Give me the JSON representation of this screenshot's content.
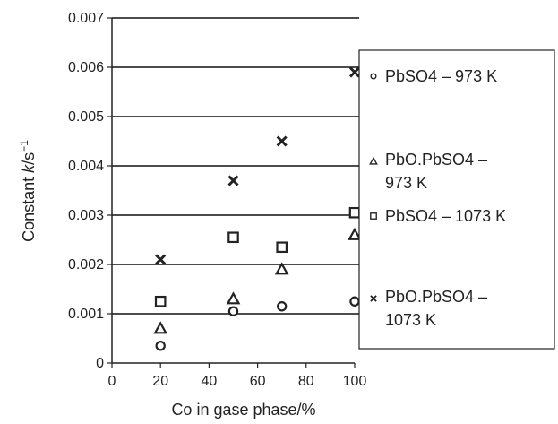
{
  "chart_data": {
    "type": "scatter",
    "xlabel": "Co in gase phase/%",
    "ylabel_main": "Constant ",
    "ylabel_italic": "k",
    "ylabel_unit": "/s",
    "ylabel_sup": "−1",
    "xlim": [
      0,
      100
    ],
    "ylim": [
      0,
      0.007
    ],
    "xticks": [
      "0",
      "20",
      "40",
      "60",
      "80",
      "100"
    ],
    "yticks": [
      "0",
      "0.001",
      "0.002",
      "0.003",
      "0.004",
      "0.005",
      "0.006",
      "0.007"
    ],
    "grid": "horizontal",
    "legend_position": "right",
    "series": [
      {
        "legend_lines": [
          "PbSO4 – 973 K"
        ],
        "marker": "circle",
        "x": [
          20,
          50,
          70,
          100
        ],
        "y": [
          0.00035,
          0.00105,
          0.00115,
          0.00125
        ]
      },
      {
        "legend_lines": [
          "PbO.PbSO4 –",
          "973 K"
        ],
        "marker": "triangle",
        "x": [
          20,
          50,
          70,
          100
        ],
        "y": [
          0.0007,
          0.0013,
          0.0019,
          0.0026
        ]
      },
      {
        "legend_lines": [
          "PbSO4 – 1073 K"
        ],
        "marker": "square",
        "x": [
          20,
          50,
          70,
          100
        ],
        "y": [
          0.00125,
          0.00255,
          0.00235,
          0.00305
        ]
      },
      {
        "legend_lines": [
          "PbO.PbSO4 –",
          "1073 K"
        ],
        "marker": "cross",
        "x": [
          20,
          50,
          70,
          100
        ],
        "y": [
          0.0021,
          0.0037,
          0.0045,
          0.0059
        ]
      }
    ]
  }
}
